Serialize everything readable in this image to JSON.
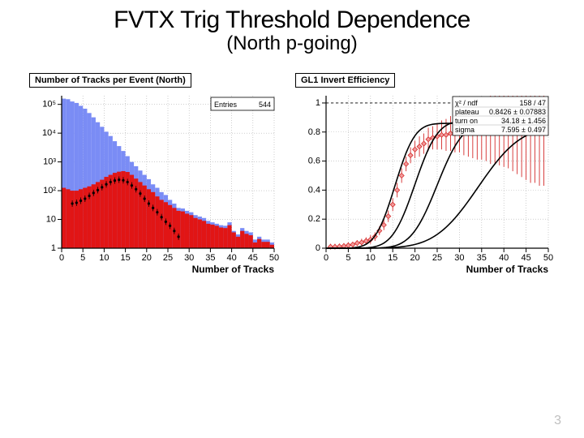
{
  "page": {
    "title": "FVTX Trig Threshold Dependence",
    "subtitle": "(North p-going)",
    "page_number": "3"
  },
  "left_chart": {
    "type": "histogram",
    "title": "Number of Tracks per Event (North)",
    "title_fontsize": 11,
    "xlabel": "Number of Tracks",
    "xlim": [
      0,
      50
    ],
    "xticks": [
      0,
      5,
      10,
      15,
      20,
      25,
      30,
      35,
      40,
      45,
      50
    ],
    "yaxis": "log",
    "ylim": [
      1,
      200000
    ],
    "yticks": [
      1,
      10,
      100,
      1000,
      10000,
      100000
    ],
    "ytick_labels": [
      "1",
      "10",
      "10²",
      "10³",
      "10⁴",
      "10⁵"
    ],
    "entries_label": "Entries",
    "entries_value": "544",
    "colors": {
      "fill_blue": "#7a8cf5",
      "fill_red": "#e11515",
      "grid": "#b0b0b0",
      "line_black": "#000000",
      "background": "#ffffff"
    },
    "blue_series_log10": [
      5.2,
      5.18,
      5.1,
      5.05,
      4.95,
      4.85,
      4.7,
      4.55,
      4.38,
      4.22,
      4.05,
      3.9,
      3.72,
      3.55,
      3.38,
      3.2,
      3.0,
      2.85,
      2.7,
      2.55,
      2.4,
      2.22,
      2.1,
      1.95,
      1.85,
      1.68,
      1.55,
      1.4,
      1.38,
      1.3,
      1.25,
      1.15,
      1.1,
      1.05,
      0.95,
      0.9,
      0.85,
      0.8,
      0.78,
      0.9,
      0.6,
      0.48,
      0.7,
      0.6,
      0.55,
      0.3,
      0.4,
      0.3,
      0.3,
      0.2
    ],
    "red_series_log10": [
      2.1,
      2.05,
      2.0,
      2.0,
      2.05,
      2.1,
      2.15,
      2.22,
      2.3,
      2.38,
      2.48,
      2.55,
      2.62,
      2.66,
      2.68,
      2.65,
      2.55,
      2.42,
      2.3,
      2.18,
      2.05,
      1.95,
      1.8,
      1.68,
      1.6,
      1.5,
      1.4,
      1.3,
      1.28,
      1.2,
      1.15,
      1.05,
      1.0,
      0.95,
      0.85,
      0.82,
      0.78,
      0.72,
      0.7,
      0.8,
      0.55,
      0.4,
      0.6,
      0.5,
      0.45,
      0.2,
      0.32,
      0.22,
      0.22,
      0.12
    ],
    "black_marker_series": {
      "x": [
        2,
        3,
        4,
        5,
        6,
        7,
        8,
        9,
        10,
        11,
        12,
        13,
        14,
        15,
        16,
        17,
        18,
        19,
        20,
        21,
        22,
        23,
        24,
        25,
        26,
        27
      ],
      "log10y": [
        1.55,
        1.58,
        1.65,
        1.72,
        1.82,
        1.92,
        2.02,
        2.12,
        2.22,
        2.3,
        2.35,
        2.38,
        2.36,
        2.3,
        2.18,
        2.05,
        1.9,
        1.72,
        1.55,
        1.4,
        1.25,
        1.08,
        0.92,
        0.78,
        0.6,
        0.4
      ]
    }
  },
  "right_chart": {
    "type": "scatter+line",
    "title": "GL1 Invert Efficiency",
    "title_fontsize": 11,
    "xlabel": "Number of Tracks",
    "xlim": [
      0,
      50
    ],
    "xticks": [
      0,
      5,
      10,
      15,
      20,
      25,
      30,
      35,
      40,
      45,
      50
    ],
    "ylim": [
      0,
      1.05
    ],
    "yticks": [
      0,
      0.2,
      0.4,
      0.6,
      0.8,
      1
    ],
    "hline_y": 1,
    "colors": {
      "marker_fill": "#f29a9a",
      "marker_edge": "#d42a2a",
      "curve": "#000000",
      "grid": "#b0b0b0",
      "background": "#ffffff"
    },
    "stat_box": {
      "rows": [
        [
          "χ² / ndf",
          "158 / 47"
        ],
        [
          "plateau",
          "0.8426 ± 0.07883"
        ],
        [
          "turn on",
          "34.18 ± 1.456"
        ],
        [
          "sigma",
          "7.595 ± 0.497"
        ]
      ]
    },
    "curves": [
      {
        "plateau": 0.86,
        "x0": 15.5,
        "sigma": 3.5
      },
      {
        "plateau": 0.88,
        "x0": 20.0,
        "sigma": 4.0
      },
      {
        "plateau": 0.87,
        "x0": 25.0,
        "sigma": 4.6
      },
      {
        "plateau": 0.84,
        "x0": 34.2,
        "sigma": 7.6
      }
    ],
    "data_points": [
      {
        "x": 1,
        "y": 0.01,
        "err": 0.02
      },
      {
        "x": 2,
        "y": 0.01,
        "err": 0.02
      },
      {
        "x": 3,
        "y": 0.012,
        "err": 0.02
      },
      {
        "x": 4,
        "y": 0.015,
        "err": 0.02
      },
      {
        "x": 5,
        "y": 0.02,
        "err": 0.02
      },
      {
        "x": 6,
        "y": 0.025,
        "err": 0.02
      },
      {
        "x": 7,
        "y": 0.035,
        "err": 0.02
      },
      {
        "x": 8,
        "y": 0.04,
        "err": 0.025
      },
      {
        "x": 9,
        "y": 0.05,
        "err": 0.025
      },
      {
        "x": 10,
        "y": 0.06,
        "err": 0.03
      },
      {
        "x": 11,
        "y": 0.08,
        "err": 0.03
      },
      {
        "x": 12,
        "y": 0.12,
        "err": 0.03
      },
      {
        "x": 13,
        "y": 0.16,
        "err": 0.035
      },
      {
        "x": 14,
        "y": 0.22,
        "err": 0.04
      },
      {
        "x": 15,
        "y": 0.3,
        "err": 0.045
      },
      {
        "x": 16,
        "y": 0.4,
        "err": 0.05
      },
      {
        "x": 17,
        "y": 0.5,
        "err": 0.05
      },
      {
        "x": 18,
        "y": 0.58,
        "err": 0.05
      },
      {
        "x": 19,
        "y": 0.64,
        "err": 0.055
      },
      {
        "x": 20,
        "y": 0.68,
        "err": 0.06
      },
      {
        "x": 21,
        "y": 0.7,
        "err": 0.07
      },
      {
        "x": 22,
        "y": 0.72,
        "err": 0.07
      },
      {
        "x": 23,
        "y": 0.75,
        "err": 0.08
      },
      {
        "x": 24,
        "y": 0.76,
        "err": 0.08
      },
      {
        "x": 25,
        "y": 0.77,
        "err": 0.09
      },
      {
        "x": 26,
        "y": 0.78,
        "err": 0.1
      },
      {
        "x": 27,
        "y": 0.78,
        "err": 0.11
      },
      {
        "x": 28,
        "y": 0.79,
        "err": 0.12
      },
      {
        "x": 29,
        "y": 0.79,
        "err": 0.13
      },
      {
        "x": 30,
        "y": 0.8,
        "err": 0.14
      },
      {
        "x": 31,
        "y": 0.8,
        "err": 0.16
      },
      {
        "x": 32,
        "y": 0.81,
        "err": 0.18
      },
      {
        "x": 33,
        "y": 0.81,
        "err": 0.19
      },
      {
        "x": 34,
        "y": 0.81,
        "err": 0.2
      },
      {
        "x": 35,
        "y": 0.82,
        "err": 0.21
      },
      {
        "x": 36,
        "y": 0.82,
        "err": 0.22
      },
      {
        "x": 37,
        "y": 0.82,
        "err": 0.24
      },
      {
        "x": 38,
        "y": 0.83,
        "err": 0.25
      },
      {
        "x": 39,
        "y": 0.83,
        "err": 0.26
      },
      {
        "x": 40,
        "y": 0.83,
        "err": 0.27
      },
      {
        "x": 41,
        "y": 0.83,
        "err": 0.28
      },
      {
        "x": 42,
        "y": 0.83,
        "err": 0.3
      },
      {
        "x": 43,
        "y": 0.83,
        "err": 0.32
      },
      {
        "x": 44,
        "y": 0.83,
        "err": 0.34
      },
      {
        "x": 45,
        "y": 0.83,
        "err": 0.36
      },
      {
        "x": 46,
        "y": 0.83,
        "err": 0.38
      },
      {
        "x": 47,
        "y": 0.83,
        "err": 0.38
      },
      {
        "x": 48,
        "y": 0.83,
        "err": 0.4
      },
      {
        "x": 49,
        "y": 0.83,
        "err": 0.4
      }
    ]
  }
}
